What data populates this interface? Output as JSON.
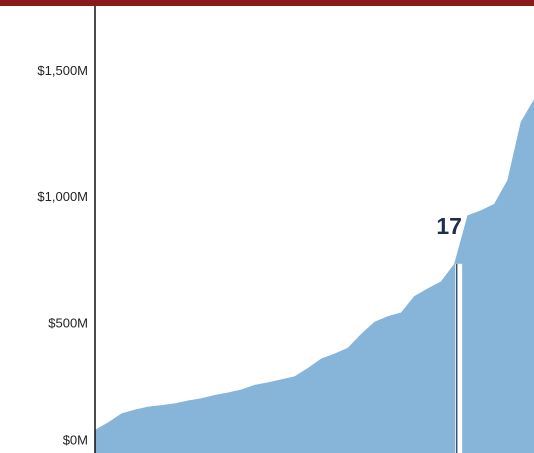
{
  "chart_data": {
    "type": "area",
    "values": [
      80,
      110,
      145,
      160,
      172,
      178,
      185,
      196,
      205,
      218,
      228,
      240,
      258,
      268,
      280,
      292,
      325,
      362,
      382,
      405,
      460,
      508,
      530,
      545,
      610,
      640,
      668,
      738,
      930,
      950,
      975,
      1070,
      1300,
      1390
    ],
    "color": "#86b5d9",
    "highlight_index": 27,
    "annotation": "17",
    "ylim": [
      0,
      1760
    ],
    "yticks": [
      {
        "value": 0,
        "label": "$0M"
      },
      {
        "value": 500,
        "label": "$500M"
      },
      {
        "value": 1000,
        "label": "$1,000M"
      },
      {
        "value": 1500,
        "label": "$1,500M"
      }
    ],
    "grid": false
  }
}
